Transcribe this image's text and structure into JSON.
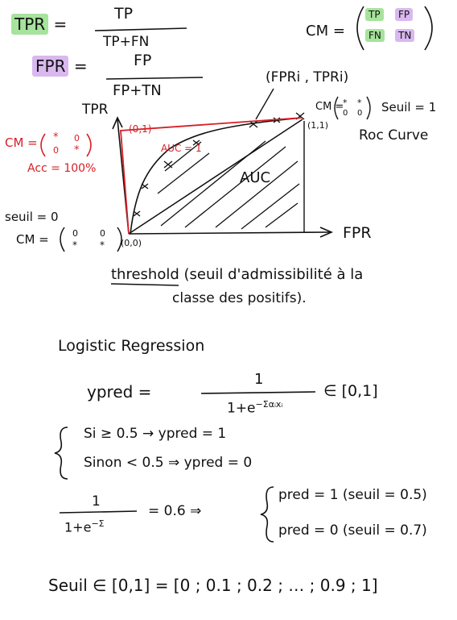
{
  "tpr_def": {
    "label": "TPR",
    "eq": "=",
    "numerator": "TP",
    "denominator": "TP+FN"
  },
  "fpr_def": {
    "label": "FPR",
    "eq": "=",
    "numerator": "FP",
    "denominator": "FP+TN"
  },
  "cm_def": {
    "label": "CM =",
    "tp": "TP",
    "fp": "FP",
    "fn": "FN",
    "tn": "TN"
  },
  "roc": {
    "y_axis": "TPR",
    "x_axis": "FPR",
    "origin": "(0,0)",
    "top_left_point": "(0,1)",
    "top_right_point": "(1,1)",
    "point_label": "(FPRi , TPRi)",
    "auc_inside": "AUC",
    "auc_label": "AUC = 1",
    "cm_perfect": "CM =",
    "acc_perfect": "Acc = 100%",
    "seuil0": "seuil = 0",
    "cm_seuil0": "CM =",
    "cm_seuil1": "CM =",
    "seuil1": "Seuil = 1",
    "curve_name": "Roc Curve",
    "m_star": "*",
    "m_zero": "0"
  },
  "threshold_note": {
    "word": "threshold",
    "line1": "(seuil d'admissibilité à la",
    "line2": "classe des positifs)."
  },
  "logistic": {
    "title": "Logistic Regression",
    "ypred": "ypred =",
    "numerator": "1",
    "denominator": "1+e",
    "exponent": "−Σαᵢxᵢ",
    "range": "∈ [0,1]",
    "case_if": "Si ≥ 0.5 → ypred = 1",
    "case_else": "Sinon < 0.5 ⇒ ypred = 0",
    "frac_num": "1",
    "frac_den": "1+e",
    "frac_exp": "−Σ",
    "frac_eq": "= 0.6 ⇒",
    "pred1": "pred = 1   (seuil = 0.5)",
    "pred0": "pred = 0   (seuil = 0.7)",
    "seuil_line": "Seuil ∈ [0,1] = [0 ; 0.1 ; 0.2 ; … ; 0.9 ; 1]"
  }
}
